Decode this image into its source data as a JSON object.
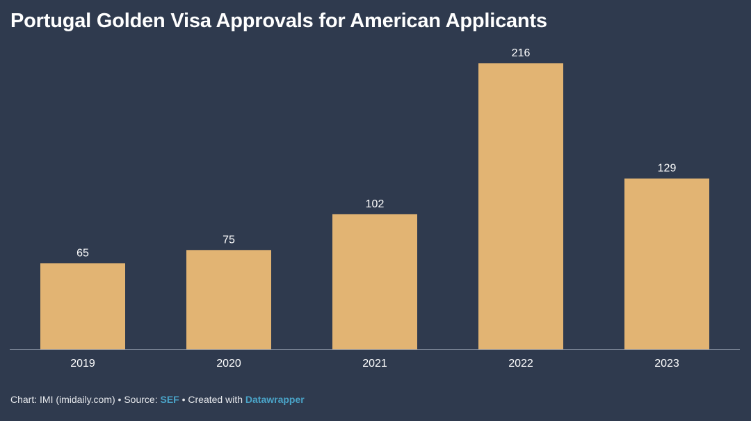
{
  "title": "Portugal Golden Visa Approvals for American Applicants",
  "chart_data": {
    "type": "bar",
    "title": "Portugal Golden Visa Approvals for American Applicants",
    "categories": [
      "2019",
      "2020",
      "2021",
      "2022",
      "2023"
    ],
    "values": [
      65,
      75,
      102,
      216,
      129
    ],
    "xlabel": "",
    "ylabel": "",
    "ylim": [
      0,
      216
    ],
    "grid": false,
    "legend": "none",
    "bar_color": "#e2b473"
  },
  "footer": {
    "chart_credit": "Chart: IMI (imidaily.com)",
    "sep1": " • ",
    "source_prefix": "Source: ",
    "source_link": "SEF",
    "sep2": " • ",
    "created_prefix": "Created with ",
    "created_link": "Datawrapper"
  },
  "colors": {
    "background": "#2f3a4e",
    "bar": "#e2b473",
    "text": "#ffffff",
    "link": "#4aa3c7",
    "baseline": "#8a93a3"
  }
}
